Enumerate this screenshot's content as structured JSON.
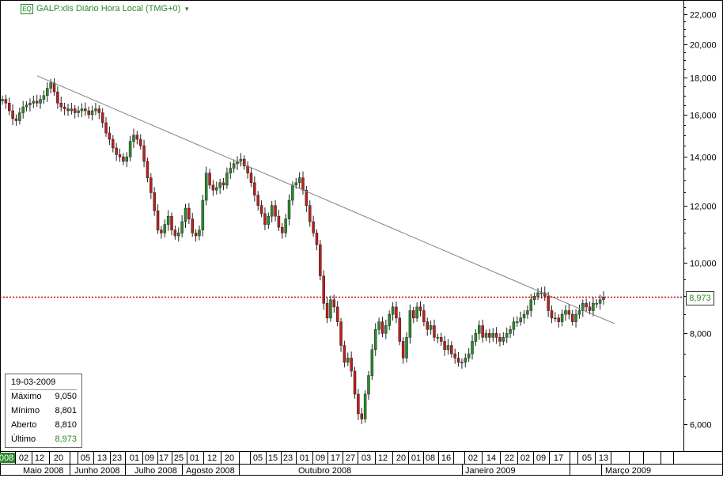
{
  "header": {
    "badge": "EQ",
    "title": "GALP.xlis Diário Hora Local (TMG+0)",
    "dropdown_icon": "triangle-down-icon"
  },
  "info_box": {
    "date": "19-03-2009",
    "rows": [
      {
        "label": "Máximo",
        "value": "9,050"
      },
      {
        "label": "Mínimo",
        "value": "8,801"
      },
      {
        "label": "Aberto",
        "value": "8,810"
      },
      {
        "label": "Último",
        "value": "8,973"
      }
    ]
  },
  "last_price_label": "8,973",
  "colors": {
    "up": "#2a8a2a",
    "down": "#c21c1c",
    "trendline": "#808080",
    "price_line": "#cc0000",
    "grid": "#222222"
  },
  "chart_data": {
    "type": "candlestick",
    "y_axis": {
      "scale": "log",
      "range": [
        5.1,
        22.5
      ],
      "ticks": [
        6,
        8,
        10,
        12,
        14,
        16,
        18,
        20,
        22
      ],
      "tick_labels": [
        "6,000",
        "8,000",
        "10,000",
        "12,000",
        "14,000",
        "16,000",
        "18,000",
        "20,000",
        "22,000"
      ]
    },
    "x_axis": {
      "day_labels": [
        "008",
        "02",
        "12",
        "20",
        "05",
        "13",
        "23",
        "01",
        "09",
        "17",
        "25",
        "01",
        "12",
        "20",
        "05",
        "15",
        "23",
        "01",
        "09",
        "17",
        "27",
        "03",
        "12",
        "20",
        "01",
        "08",
        "16",
        "02",
        "14",
        "22",
        "02",
        "09",
        "17",
        "05",
        "13"
      ],
      "month_labels": [
        "Maio 2008",
        "Junho 2008",
        "Julho 2008",
        "Agosto 2008",
        "Outubro 2008",
        "Janeiro 2009",
        "Março 2009"
      ]
    },
    "last_price": 8.973,
    "trendline": {
      "start": [
        "2008-05-12",
        18.1
      ],
      "end": [
        "2009-03-19",
        8.25
      ]
    },
    "closes": [
      16.8,
      16.6,
      16.2,
      15.8,
      15.7,
      16.1,
      16.4,
      16.5,
      16.6,
      16.7,
      16.6,
      16.8,
      17.0,
      17.4,
      17.7,
      17.2,
      16.6,
      16.4,
      16.3,
      16.2,
      16.3,
      16.1,
      16.2,
      16.3,
      16.2,
      16.0,
      16.2,
      16.3,
      16.1,
      15.6,
      15.1,
      14.8,
      14.4,
      14.1,
      14.0,
      13.8,
      14.0,
      14.7,
      15.0,
      14.8,
      14.5,
      13.8,
      13.1,
      12.5,
      11.8,
      11.1,
      11.0,
      11.3,
      11.6,
      11.1,
      10.9,
      11.0,
      11.4,
      11.9,
      11.5,
      11.0,
      10.9,
      11.1,
      12.2,
      13.3,
      12.8,
      12.6,
      12.7,
      12.9,
      12.8,
      13.3,
      13.5,
      13.7,
      13.8,
      13.9,
      13.6,
      13.3,
      12.9,
      12.4,
      12.0,
      11.7,
      11.3,
      11.6,
      12.0,
      11.6,
      11.2,
      11.0,
      11.5,
      12.2,
      12.8,
      12.9,
      13.1,
      12.6,
      12.0,
      11.4,
      11.0,
      10.6,
      9.6,
      8.8,
      8.4,
      8.9,
      8.7,
      8.3,
      7.7,
      7.3,
      7.4,
      7.1,
      6.6,
      6.2,
      6.1,
      6.6,
      7.0,
      7.6,
      8.1,
      8.3,
      8.0,
      8.2,
      8.5,
      8.7,
      8.4,
      7.8,
      7.4,
      7.9,
      8.6,
      8.4,
      8.7,
      8.6,
      8.3,
      8.1,
      8.2,
      7.9,
      7.9,
      7.8,
      7.6,
      7.7,
      7.5,
      7.4,
      7.3,
      7.3,
      7.4,
      7.5,
      7.8,
      8.0,
      8.2,
      7.9,
      8.0,
      7.9,
      8.0,
      7.9,
      7.8,
      7.9,
      8.0,
      8.1,
      8.3,
      8.3,
      8.4,
      8.5,
      8.6,
      8.9,
      9.0,
      9.1,
      9.1,
      9.0,
      8.6,
      8.4,
      8.4,
      8.3,
      8.5,
      8.6,
      8.5,
      8.3,
      8.5,
      8.6,
      8.8,
      8.7,
      8.6,
      8.8,
      8.8,
      8.9,
      8.97
    ]
  }
}
